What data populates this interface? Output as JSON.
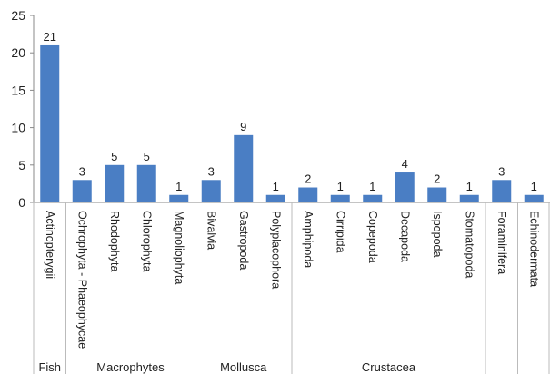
{
  "chart_data": {
    "type": "bar",
    "title": "",
    "xlabel": "",
    "ylabel": "",
    "ylim": [
      0,
      25
    ],
    "yticks": [
      0,
      5,
      10,
      15,
      20,
      25
    ],
    "grid": false,
    "legend": "none",
    "bar_color": "#4a7ec4",
    "categories": [
      "Actinopterygii",
      "Ochrophyta - Phaeophycae",
      "Rhodophyta",
      "Chlorophyta",
      "Magnoliophyta",
      "Bivalvia",
      "Gastropoda",
      "Polyplacophora",
      "Amphipoda",
      "Cirripida",
      "Copepoda",
      "Decapoda",
      "Ispopoda",
      "Stomatopoda",
      "Foraminifera",
      "Echinodermata"
    ],
    "values": [
      21,
      3,
      5,
      5,
      1,
      3,
      9,
      1,
      2,
      1,
      1,
      4,
      2,
      1,
      3,
      1
    ],
    "groups": [
      {
        "label": "Fish",
        "start": 0,
        "end": 0
      },
      {
        "label": "Macrophytes",
        "start": 1,
        "end": 4
      },
      {
        "label": "Mollusca",
        "start": 5,
        "end": 7
      },
      {
        "label": "Crustacea",
        "start": 8,
        "end": 13
      },
      {
        "label": "",
        "start": 14,
        "end": 14
      },
      {
        "label": "",
        "start": 15,
        "end": 15
      }
    ]
  }
}
